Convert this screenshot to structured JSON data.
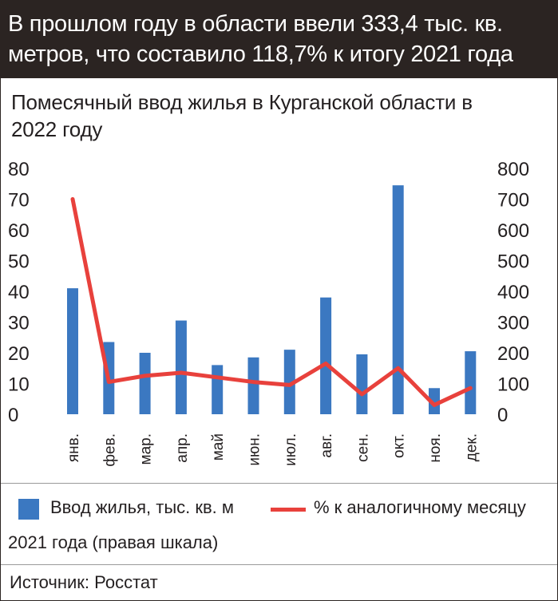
{
  "header": {
    "line1": "В прошлом году в области ввели  333,4 тыс. кв.",
    "line2": "метров, что составило 118,7% к итогу 2021 года"
  },
  "subtitle": {
    "line1": "Помесячный ввод жилья в Курганской области в",
    "line2": "2022 году"
  },
  "legend": {
    "bar_label": "Ввод жилья, тыс. кв. м",
    "line_label_part1": "% к аналогичному месяцу",
    "line_label_part2": "2021 года (правая шкала)"
  },
  "source": "Источник: Росстат",
  "colors": {
    "bar": "#3b78c1",
    "line": "#e8413c",
    "header_bg": "#2b2422"
  },
  "chart_data": {
    "type": "bar",
    "categories": [
      "янв.",
      "фев.",
      "мар.",
      "апр.",
      "май",
      "июн.",
      "июл.",
      "авг.",
      "сен.",
      "окт.",
      "ноя.",
      "дек."
    ],
    "series": [
      {
        "name": "Ввод жилья, тыс. кв. м",
        "type": "bar",
        "axis": "left",
        "values": [
          41,
          23.5,
          20,
          30.5,
          16,
          18.5,
          21,
          38,
          19.5,
          74.5,
          8.5,
          20.5
        ]
      },
      {
        "name": "% к аналогичному месяцу 2021 года (правая шкала)",
        "type": "line",
        "axis": "right",
        "values": [
          700,
          105,
          125,
          135,
          120,
          105,
          95,
          165,
          65,
          150,
          30,
          85
        ]
      }
    ],
    "ylim_left": [
      0,
      80
    ],
    "yticks_left": [
      "80",
      "70",
      "60",
      "50",
      "40",
      "30",
      "20",
      "10",
      "0"
    ],
    "ylim_right": [
      0,
      800
    ],
    "yticks_right": [
      "800",
      "700",
      "600",
      "500",
      "400",
      "300",
      "200",
      "100",
      "0"
    ],
    "legend_position": "bottom",
    "grid": false
  }
}
